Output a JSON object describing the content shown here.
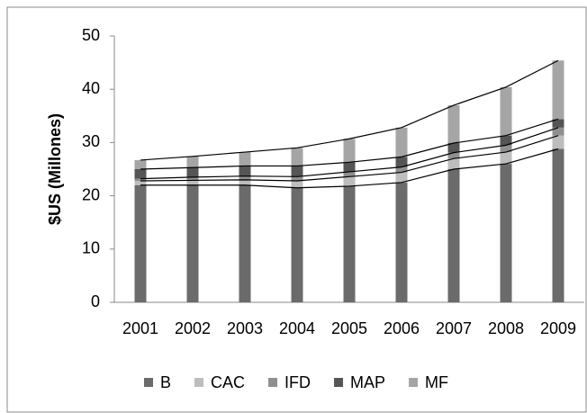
{
  "chart_data": {
    "type": "stacked-bar-line",
    "y_label": "$US (Millones)",
    "categories": [
      "2001",
      "2002",
      "2003",
      "2004",
      "2005",
      "2006",
      "2007",
      "2008",
      "2009"
    ],
    "series": [
      {
        "name": "B",
        "color": "#6b6b6b",
        "values": [
          22,
          22,
          22,
          21.5,
          21.8,
          22.5,
          25,
          26,
          28.8
        ]
      },
      {
        "name": "CAC",
        "color": "#bdbdbd",
        "values": [
          0.8,
          0.9,
          1.0,
          1.3,
          1.8,
          1.9,
          2.0,
          2.2,
          2.5
        ]
      },
      {
        "name": "IFD",
        "color": "#8f8f8f",
        "values": [
          0.4,
          0.6,
          0.7,
          0.8,
          0.9,
          1.0,
          1.1,
          1.3,
          1.5
        ]
      },
      {
        "name": "MAP",
        "color": "#555555",
        "values": [
          1.8,
          1.8,
          1.9,
          2.0,
          1.8,
          1.9,
          1.8,
          1.8,
          1.6
        ]
      },
      {
        "name": "MF",
        "color": "#a5a5a5",
        "values": [
          1.7,
          2.1,
          2.6,
          3.4,
          4.4,
          5.5,
          7.1,
          9.1,
          11.0
        ]
      }
    ],
    "ylim": [
      0,
      50
    ],
    "yticks": [
      0,
      10,
      20,
      30,
      40,
      50
    ],
    "grid": false,
    "legend": "bottom"
  }
}
